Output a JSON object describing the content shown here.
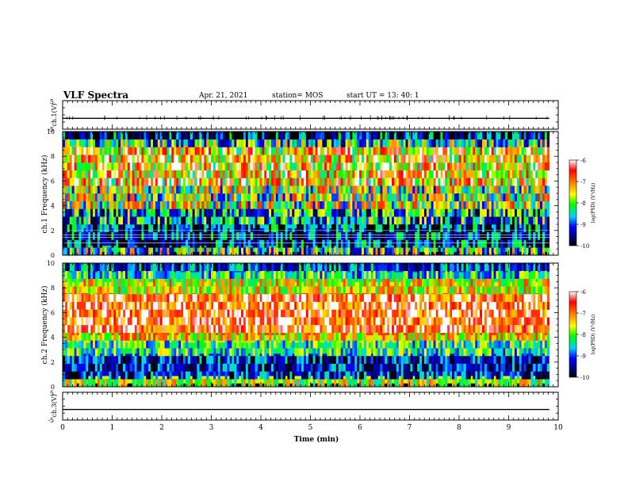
{
  "header": {
    "title": "VLF Spectra",
    "date": "Apr. 21, 2021",
    "station": "station= MOS",
    "start": "start  UT =   13: 40: 1"
  },
  "colorbar": {
    "ticks": [
      "-6",
      "-7",
      "-8",
      "-9",
      "-10"
    ],
    "label": "log(PSD) (V²/Hz)",
    "colors": [
      "#ffffff",
      "#ff0000",
      "#ffa000",
      "#ffff00",
      "#00ff00",
      "#00d0ff",
      "#0000ff",
      "#000080",
      "#000000"
    ]
  },
  "chart_data": [
    {
      "type": "line",
      "panel": "ch1_voltage",
      "ylabel": "ch.1(V)",
      "yticks": [
        "5",
        "-5"
      ],
      "ylim": [
        -5,
        5
      ],
      "xlim": [
        0,
        10
      ],
      "trace_level_v": -1.2,
      "note": "near-flat voltage trace with small spikes"
    },
    {
      "type": "heatmap",
      "panel": "ch1_spectrogram",
      "ylabel": "ch.1 Frequency (kHz)",
      "yticks": [
        "0",
        "2",
        "4",
        "6",
        "8",
        "10"
      ],
      "ylim": [
        0,
        10
      ],
      "xlim": [
        0,
        10
      ],
      "bands": [
        {
          "f_from": 0.0,
          "f_to": 0.3,
          "log_psd": -10
        },
        {
          "f_from": 0.3,
          "f_to": 0.8,
          "log_psd": -8.2
        },
        {
          "f_from": 0.8,
          "f_to": 2.2,
          "log_psd": -9.3
        },
        {
          "f_from": 2.2,
          "f_to": 3.5,
          "log_psd": -8.6
        },
        {
          "f_from": 3.5,
          "f_to": 5.5,
          "log_psd": -7.8
        },
        {
          "f_from": 5.5,
          "f_to": 8.9,
          "log_psd": -7.1
        },
        {
          "f_from": 8.9,
          "f_to": 9.4,
          "log_psd": -8.3
        },
        {
          "f_from": 9.4,
          "f_to": 10.0,
          "log_psd": -9.4
        }
      ],
      "horizontal_lines_khz": [
        1.0,
        1.45,
        1.65,
        2.0
      ]
    },
    {
      "type": "heatmap",
      "panel": "ch2_spectrogram",
      "ylabel": "ch.2 Frequency (kHz)",
      "yticks": [
        "0",
        "2",
        "4",
        "6",
        "8",
        "10"
      ],
      "ylim": [
        0,
        10
      ],
      "xlim": [
        0,
        10
      ],
      "bands": [
        {
          "f_from": 0.0,
          "f_to": 0.3,
          "log_psd": -10
        },
        {
          "f_from": 0.3,
          "f_to": 0.9,
          "log_psd": -7.6
        },
        {
          "f_from": 0.9,
          "f_to": 2.7,
          "log_psd": -9.2
        },
        {
          "f_from": 2.7,
          "f_to": 3.6,
          "log_psd": -8.2
        },
        {
          "f_from": 3.6,
          "f_to": 4.2,
          "log_psd": -7.3
        },
        {
          "f_from": 4.2,
          "f_to": 7.6,
          "log_psd": -6.5
        },
        {
          "f_from": 7.6,
          "f_to": 8.5,
          "log_psd": -7.4
        },
        {
          "f_from": 8.5,
          "f_to": 9.3,
          "log_psd": -8.3
        },
        {
          "f_from": 9.3,
          "f_to": 10.0,
          "log_psd": -9.0
        }
      ]
    },
    {
      "type": "line",
      "panel": "ch3_voltage",
      "ylabel": "ch.3(V)",
      "yticks": [
        "5",
        "-5"
      ],
      "ylim": [
        -5,
        5
      ],
      "xlim": [
        0,
        10
      ],
      "trace_level_v": -1.2
    }
  ],
  "xaxis": {
    "label": "Time  (min)",
    "ticks": [
      "0",
      "1",
      "2",
      "3",
      "4",
      "5",
      "6",
      "7",
      "8",
      "9",
      "10"
    ],
    "range": [
      0,
      10
    ],
    "data_end": 9.82
  }
}
